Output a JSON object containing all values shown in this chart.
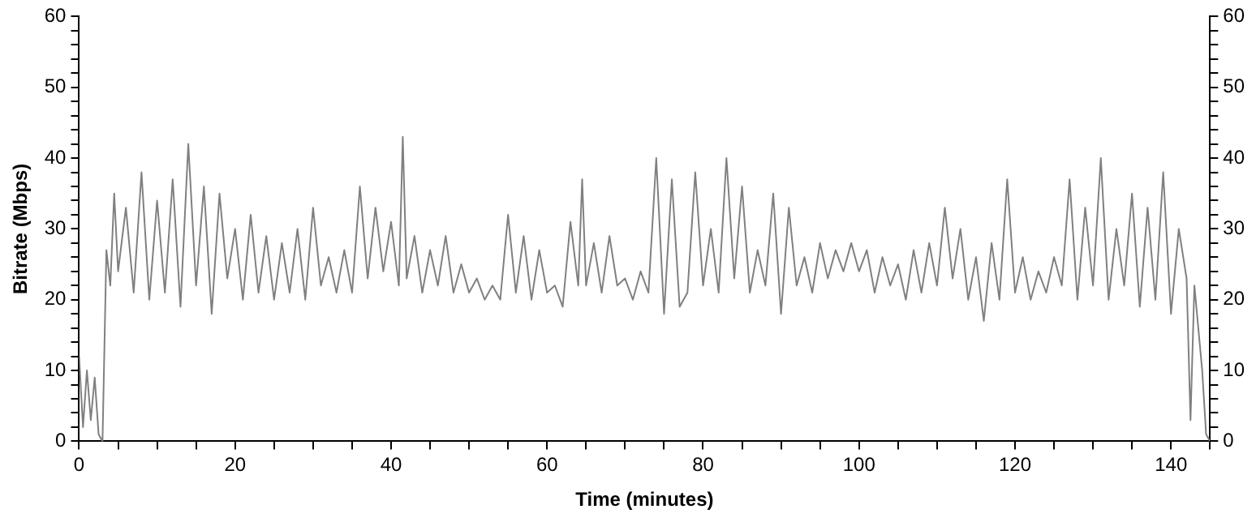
{
  "chart_data": {
    "type": "line",
    "xlabel": "Time (minutes)",
    "ylabel": "Bitrate (Mbps)",
    "x": [
      0,
      0.5,
      1,
      1.5,
      2,
      2.5,
      3,
      3.5,
      4,
      4.5,
      5,
      6,
      7,
      8,
      9,
      10,
      11,
      12,
      13,
      14,
      15,
      16,
      17,
      18,
      19,
      20,
      21,
      22,
      23,
      24,
      25,
      26,
      27,
      28,
      29,
      30,
      31,
      32,
      33,
      34,
      35,
      36,
      37,
      38,
      39,
      40,
      41,
      41.5,
      42,
      43,
      44,
      45,
      46,
      47,
      48,
      49,
      50,
      51,
      52,
      53,
      54,
      55,
      56,
      57,
      58,
      59,
      60,
      61,
      62,
      63,
      64,
      64.5,
      65,
      66,
      67,
      68,
      69,
      70,
      71,
      72,
      73,
      74,
      75,
      76,
      77,
      78,
      79,
      80,
      81,
      82,
      83,
      84,
      85,
      86,
      87,
      88,
      89,
      90,
      91,
      92,
      93,
      94,
      95,
      96,
      97,
      98,
      99,
      100,
      101,
      102,
      103,
      104,
      105,
      106,
      107,
      108,
      109,
      110,
      111,
      112,
      113,
      114,
      115,
      116,
      117,
      118,
      119,
      120,
      121,
      122,
      123,
      124,
      125,
      126,
      127,
      128,
      129,
      130,
      131,
      132,
      133,
      134,
      135,
      136,
      137,
      138,
      139,
      140,
      141,
      142,
      142.5,
      143,
      144,
      144.5,
      145
    ],
    "series": [
      {
        "color": "#808080",
        "values": [
          12,
          2,
          10,
          3,
          9,
          1,
          0,
          27,
          22,
          35,
          24,
          33,
          21,
          38,
          20,
          34,
          21,
          37,
          19,
          42,
          22,
          36,
          18,
          35,
          23,
          30,
          20,
          32,
          21,
          29,
          20,
          28,
          21,
          30,
          20,
          33,
          22,
          26,
          21,
          27,
          21,
          36,
          23,
          33,
          24,
          31,
          22,
          43,
          23,
          29,
          21,
          27,
          22,
          29,
          21,
          25,
          21,
          23,
          20,
          22,
          20,
          32,
          21,
          29,
          20,
          27,
          21,
          22,
          19,
          31,
          22,
          37,
          22,
          28,
          21,
          29,
          22,
          23,
          20,
          24,
          21,
          40,
          18,
          37,
          19,
          21,
          38,
          22,
          30,
          21,
          40,
          23,
          36,
          21,
          27,
          22,
          35,
          18,
          33,
          22,
          26,
          21,
          28,
          23,
          27,
          24,
          28,
          24,
          27,
          21,
          26,
          22,
          25,
          20,
          27,
          21,
          28,
          22,
          33,
          23,
          30,
          20,
          26,
          17,
          28,
          20,
          37,
          21,
          26,
          20,
          24,
          21,
          26,
          22,
          37,
          20,
          33,
          22,
          40,
          20,
          30,
          22,
          35,
          19,
          33,
          20,
          38,
          18,
          30,
          23,
          3,
          22,
          10,
          1,
          0
        ]
      }
    ],
    "xlim": [
      0,
      145
    ],
    "xticks": [
      0,
      {
        "value": 5,
        "label": null
      },
      {
        "value": 10,
        "label": null
      },
      {
        "value": 15,
        "label": null
      },
      20,
      {
        "value": 25,
        "label": null
      },
      {
        "value": 30,
        "label": null
      },
      {
        "value": 35,
        "label": null
      },
      40,
      {
        "value": 45,
        "label": null
      },
      {
        "value": 50,
        "label": null
      },
      {
        "value": 55,
        "label": null
      },
      60,
      {
        "value": 65,
        "label": null
      },
      {
        "value": 70,
        "label": null
      },
      {
        "value": 75,
        "label": null
      },
      80,
      {
        "value": 85,
        "label": null
      },
      {
        "value": 90,
        "label": null
      },
      {
        "value": 95,
        "label": null
      },
      100,
      {
        "value": 105,
        "label": null
      },
      {
        "value": 110,
        "label": null
      },
      {
        "value": 115,
        "label": null
      },
      120,
      {
        "value": 125,
        "label": null
      },
      {
        "value": 130,
        "label": null
      },
      {
        "value": 135,
        "label": null
      },
      140,
      {
        "value": 145,
        "label": null
      }
    ],
    "ylim": [
      0,
      60
    ],
    "yticks": [
      0,
      {
        "value": 2,
        "label": null
      },
      {
        "value": 4,
        "label": null
      },
      {
        "value": 6,
        "label": null
      },
      {
        "value": 8,
        "label": null
      },
      10,
      {
        "value": 12,
        "label": null
      },
      {
        "value": 14,
        "label": null
      },
      {
        "value": 16,
        "label": null
      },
      {
        "value": 18,
        "label": null
      },
      20,
      {
        "value": 22,
        "label": null
      },
      {
        "value": 24,
        "label": null
      },
      {
        "value": 26,
        "label": null
      },
      {
        "value": 28,
        "label": null
      },
      30,
      {
        "value": 32,
        "label": null
      },
      {
        "value": 34,
        "label": null
      },
      {
        "value": 36,
        "label": null
      },
      {
        "value": 38,
        "label": null
      },
      40,
      {
        "value": 42,
        "label": null
      },
      {
        "value": 44,
        "label": null
      },
      {
        "value": 46,
        "label": null
      },
      {
        "value": 48,
        "label": null
      },
      50,
      {
        "value": 52,
        "label": null
      },
      {
        "value": 54,
        "label": null
      },
      {
        "value": 56,
        "label": null
      },
      {
        "value": 58,
        "label": null
      },
      60
    ],
    "y2lim": [
      0,
      60
    ],
    "y2ticks": [
      0,
      {
        "value": 2,
        "label": null
      },
      {
        "value": 4,
        "label": null
      },
      {
        "value": 6,
        "label": null
      },
      {
        "value": 8,
        "label": null
      },
      10,
      {
        "value": 12,
        "label": null
      },
      {
        "value": 14,
        "label": null
      },
      {
        "value": 16,
        "label": null
      },
      {
        "value": 18,
        "label": null
      },
      20,
      {
        "value": 22,
        "label": null
      },
      {
        "value": 24,
        "label": null
      },
      {
        "value": 26,
        "label": null
      },
      {
        "value": 28,
        "label": null
      },
      30,
      {
        "value": 32,
        "label": null
      },
      {
        "value": 34,
        "label": null
      },
      {
        "value": 36,
        "label": null
      },
      {
        "value": 38,
        "label": null
      },
      40,
      {
        "value": 42,
        "label": null
      },
      {
        "value": 44,
        "label": null
      },
      {
        "value": 46,
        "label": null
      },
      {
        "value": 48,
        "label": null
      },
      50,
      {
        "value": 52,
        "label": null
      },
      {
        "value": 54,
        "label": null
      },
      {
        "value": 56,
        "label": null
      },
      {
        "value": 58,
        "label": null
      },
      60
    ],
    "grid": false,
    "legend": false,
    "marker": "none",
    "line_style": "solid"
  }
}
